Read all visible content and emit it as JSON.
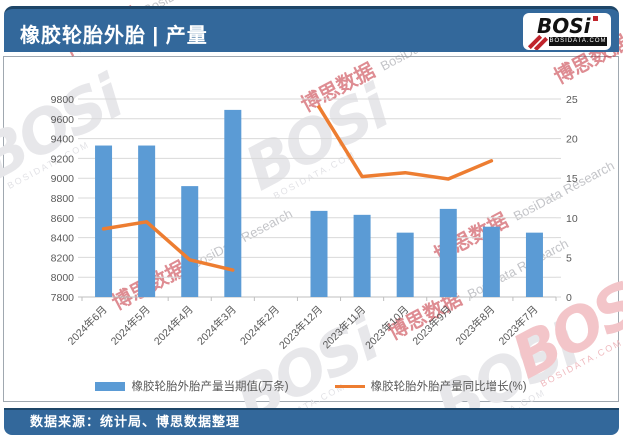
{
  "header": {
    "title": "橡胶轮胎外胎 | 产量",
    "logo": {
      "name": "BOSi",
      "domain": "BOSIDATA.COM"
    }
  },
  "footer": {
    "source": "数据来源：统计局、博思数据整理"
  },
  "watermark": {
    "cn": "博思数据",
    "en": "BosiData Research",
    "logo": "BOSi",
    "domain": "BOSIDATA.COM"
  },
  "chart_data": {
    "type": "bar+line",
    "title": "橡胶轮胎外胎产量",
    "categories": [
      "2024年6月",
      "2024年5月",
      "2024年4月",
      "2024年3月",
      "2024年2月",
      "2023年12月",
      "2023年11月",
      "2023年10月",
      "2023年9月",
      "2023年8月",
      "2023年7月"
    ],
    "series": [
      {
        "name": "橡胶轮胎外胎产量当期值(万条)",
        "type": "bar",
        "axis": "left",
        "color": "#5B9BD5",
        "values": [
          9330,
          9330,
          8920,
          9690,
          null,
          8670,
          8630,
          8450,
          8690,
          8510,
          8450
        ]
      },
      {
        "name": "橡胶轮胎外胎产量同比增长(%)",
        "type": "line",
        "axis": "right",
        "color": "#ED7D31",
        "values": [
          8.6,
          9.5,
          4.7,
          3.4,
          null,
          24.0,
          15.2,
          15.7,
          14.9,
          17.2,
          null
        ]
      }
    ],
    "left_axis": {
      "min": 7800,
      "max": 9800,
      "step": 200
    },
    "right_axis": {
      "min": 0,
      "max": 25,
      "step": 5,
      "minor_step": 2.5
    },
    "grid": true,
    "grid_color": "#D9D9D9",
    "axis_tick_color": "#BFBFBF",
    "legend_position": "bottom"
  }
}
